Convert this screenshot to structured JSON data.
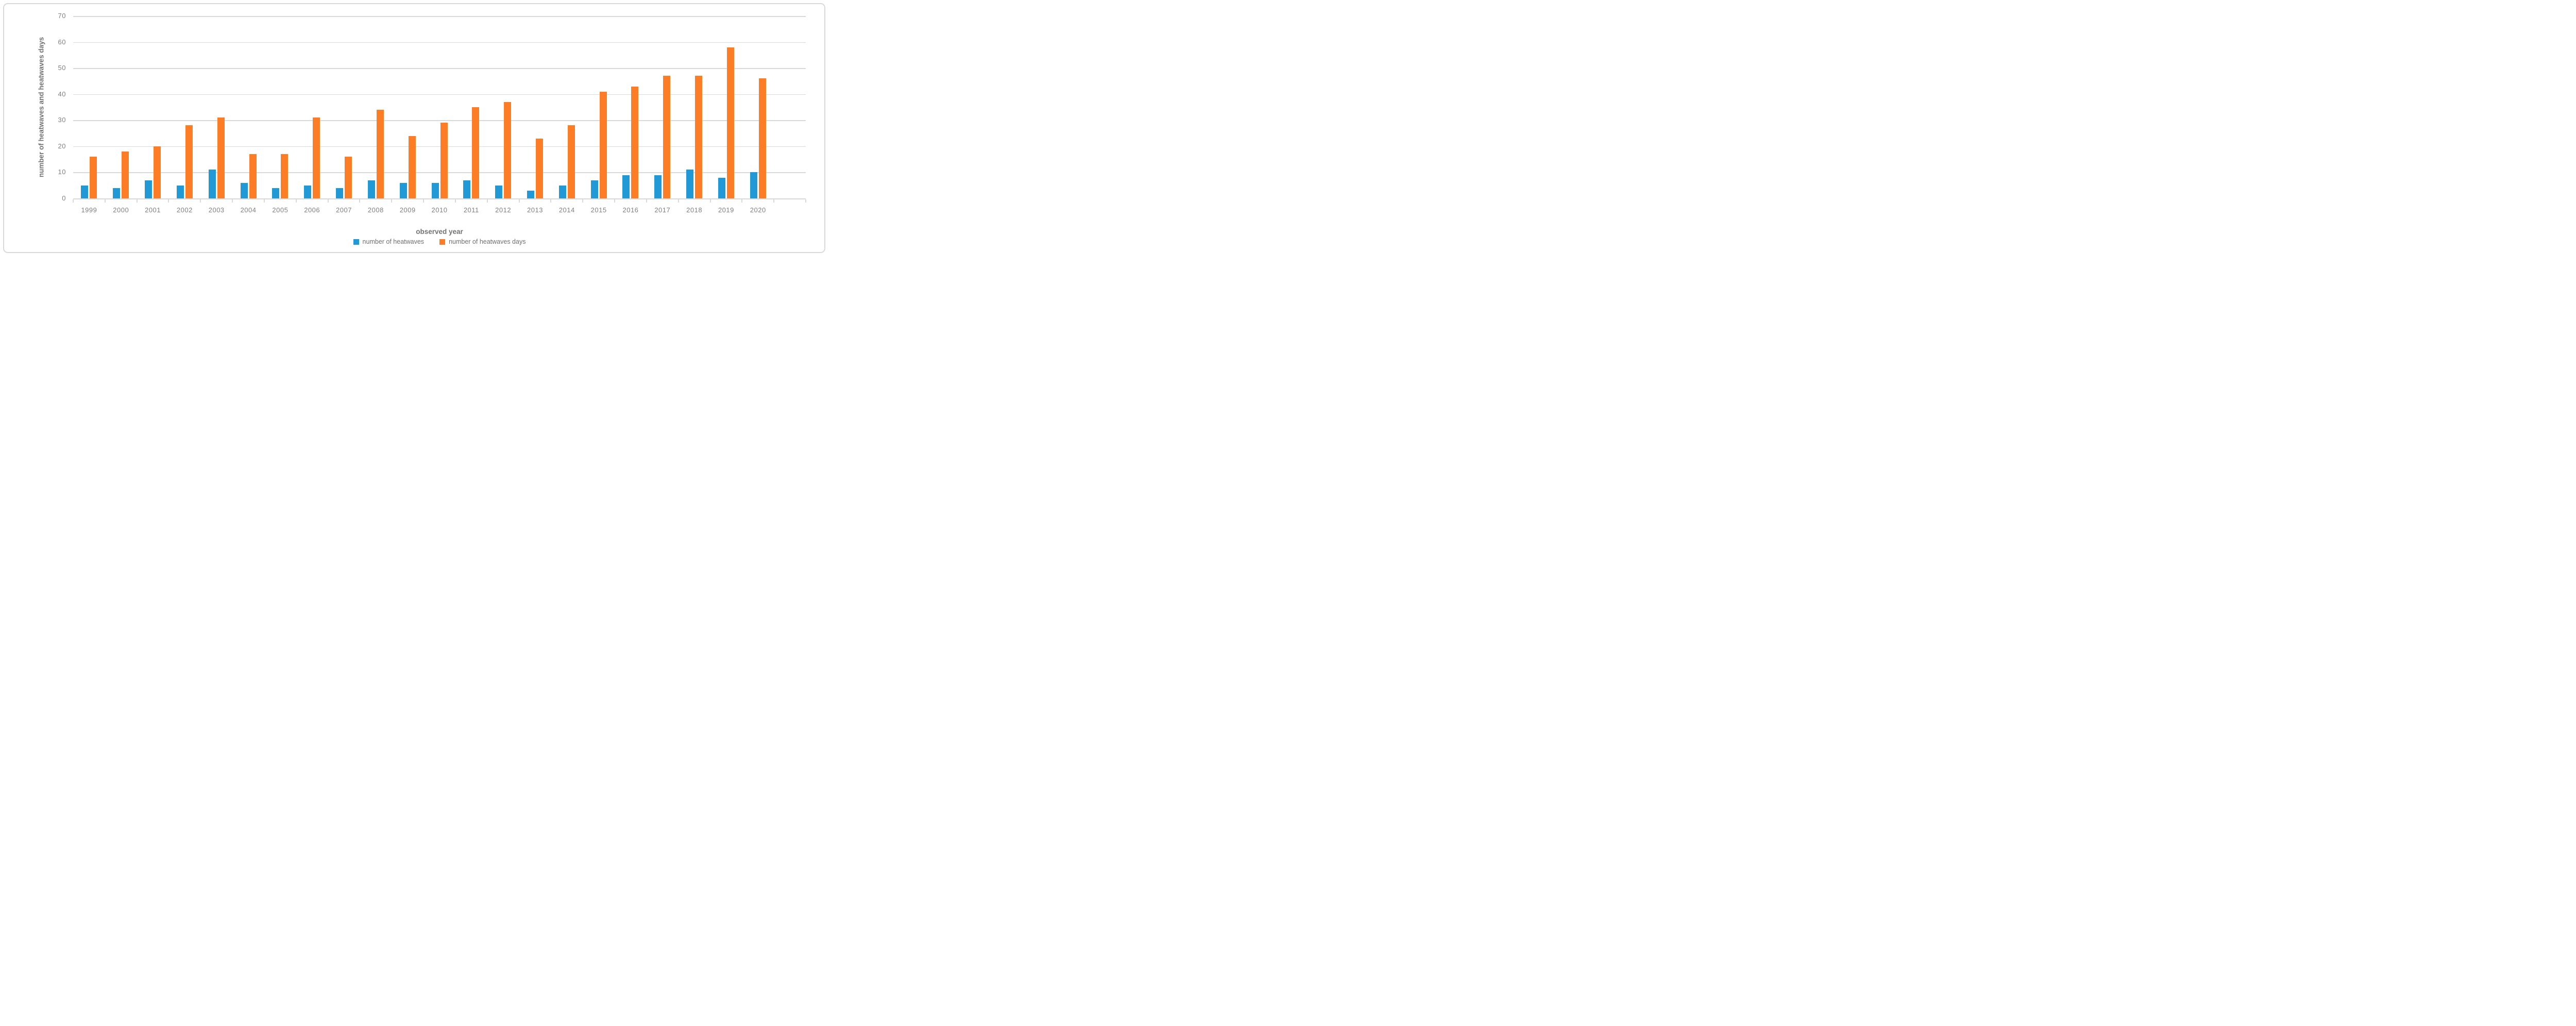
{
  "chart_data": {
    "type": "bar",
    "title": "",
    "categories": [
      "1999",
      "2000",
      "2001",
      "2002",
      "2003",
      "2004",
      "2005",
      "2006",
      "2007",
      "2008",
      "2009",
      "2010",
      "2011",
      "2012",
      "2013",
      "2014",
      "2015",
      "2016",
      "2017",
      "2018",
      "2019",
      "2020"
    ],
    "series": [
      {
        "name": "number of heatwaves",
        "color": "#2099D6",
        "values": [
          5,
          4,
          7,
          5,
          11,
          6,
          4,
          5,
          4,
          7,
          6,
          6,
          7,
          5,
          3,
          5,
          7,
          9,
          9,
          11,
          8,
          10
        ]
      },
      {
        "name": "number of heatwaves days",
        "color": "#FC7D25",
        "values": [
          16,
          18,
          20,
          28,
          31,
          17,
          17,
          31,
          16,
          34,
          24,
          29,
          35,
          37,
          23,
          28,
          41,
          43,
          47,
          47,
          58,
          46
        ]
      }
    ],
    "xlabel": "observed year",
    "ylabel": "number of heatwaves and heatwaves days",
    "ylim": [
      0,
      70
    ],
    "yticks": [
      0,
      10,
      20,
      30,
      40,
      50,
      60,
      70
    ],
    "grid": true,
    "legend_position": "bottom",
    "trailing_empty_slots": 1
  },
  "style": {
    "gridline_color": "#D9D9D9",
    "axis_line_color": "#D9D9D9",
    "tick_label_color": "#808080",
    "axis_title_color": "#737373",
    "legend_text_color": "#6F6F6F",
    "background": "#ffffff",
    "border_color": "#D9D9D9"
  }
}
